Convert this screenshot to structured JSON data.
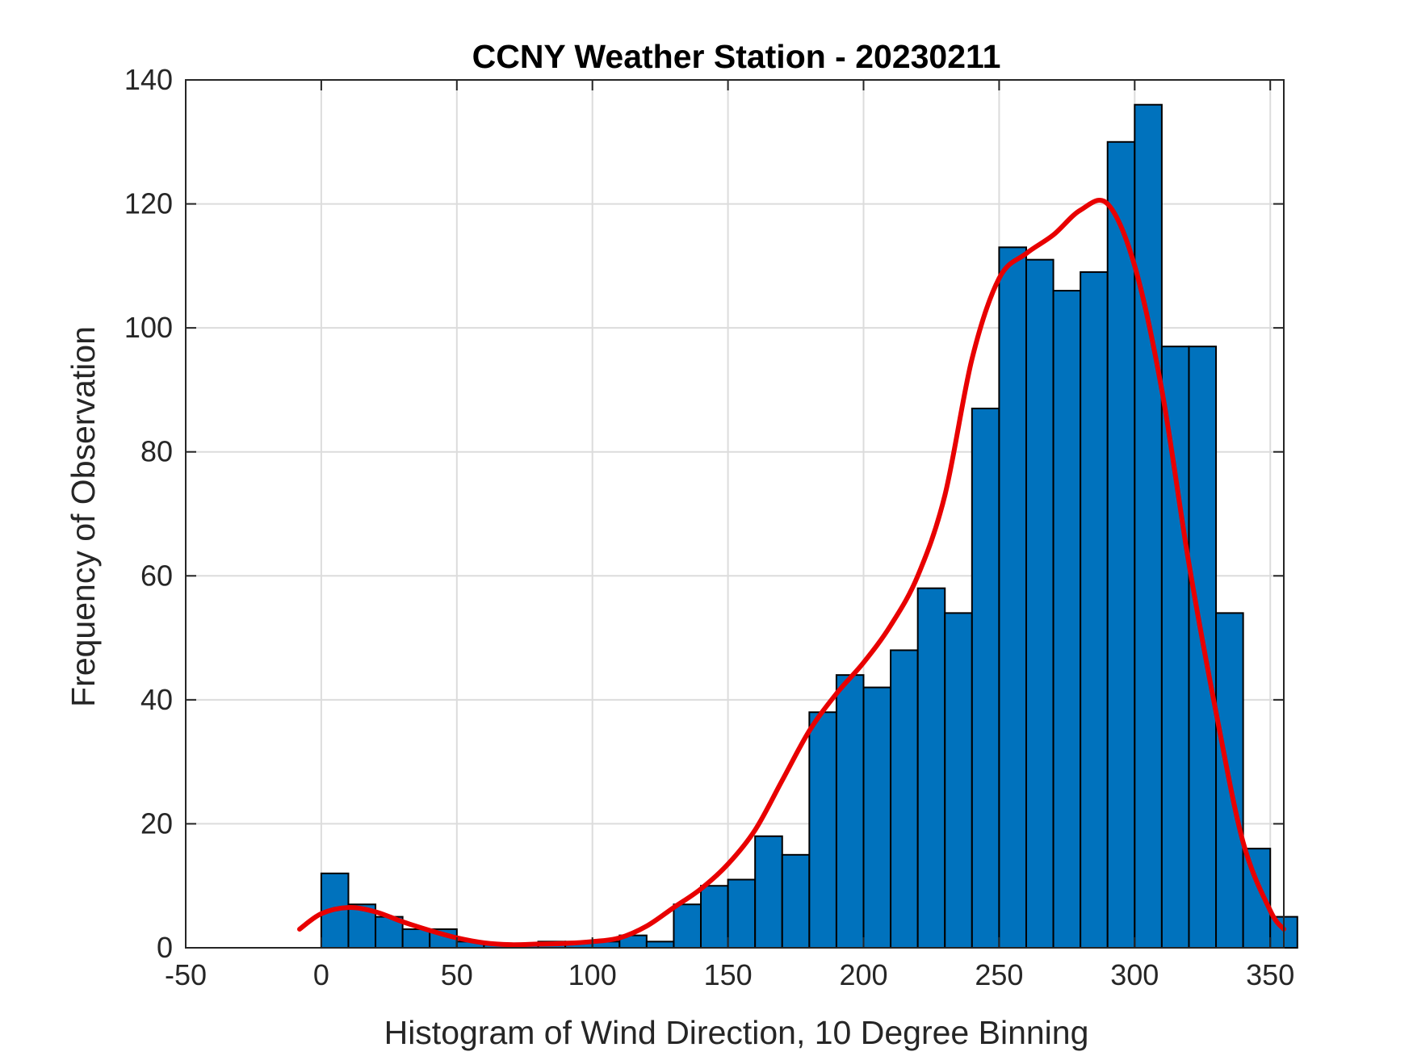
{
  "chart_data": {
    "type": "bar",
    "title": "CCNY Weather Station - 20230211",
    "xlabel": "Histogram of Wind Direction, 10 Degree Binning",
    "ylabel": "Frequency of Observation",
    "xlim": [
      -50,
      355
    ],
    "ylim": [
      0,
      140
    ],
    "xticks": [
      -50,
      0,
      50,
      100,
      150,
      200,
      250,
      300,
      350
    ],
    "yticks": [
      0,
      20,
      40,
      60,
      80,
      100,
      120,
      140
    ],
    "grid": true,
    "bin_width": 10,
    "bins": [
      {
        "start": 0,
        "value": 12
      },
      {
        "start": 10,
        "value": 7
      },
      {
        "start": 20,
        "value": 5
      },
      {
        "start": 30,
        "value": 3
      },
      {
        "start": 40,
        "value": 3
      },
      {
        "start": 50,
        "value": 1
      },
      {
        "start": 60,
        "value": 0.5
      },
      {
        "start": 70,
        "value": 0.5
      },
      {
        "start": 80,
        "value": 1
      },
      {
        "start": 90,
        "value": 1
      },
      {
        "start": 100,
        "value": 1
      },
      {
        "start": 110,
        "value": 2
      },
      {
        "start": 120,
        "value": 1
      },
      {
        "start": 130,
        "value": 7
      },
      {
        "start": 140,
        "value": 10
      },
      {
        "start": 150,
        "value": 11
      },
      {
        "start": 160,
        "value": 18
      },
      {
        "start": 170,
        "value": 15
      },
      {
        "start": 180,
        "value": 38
      },
      {
        "start": 190,
        "value": 44
      },
      {
        "start": 200,
        "value": 42
      },
      {
        "start": 210,
        "value": 48
      },
      {
        "start": 220,
        "value": 58
      },
      {
        "start": 230,
        "value": 54
      },
      {
        "start": 240,
        "value": 87
      },
      {
        "start": 250,
        "value": 113
      },
      {
        "start": 260,
        "value": 111
      },
      {
        "start": 270,
        "value": 106
      },
      {
        "start": 280,
        "value": 109
      },
      {
        "start": 290,
        "value": 130
      },
      {
        "start": 300,
        "value": 136
      },
      {
        "start": 310,
        "value": 97
      },
      {
        "start": 320,
        "value": 97
      },
      {
        "start": 330,
        "value": 54
      },
      {
        "start": 340,
        "value": 16
      },
      {
        "start": 350,
        "value": 5
      }
    ],
    "density_curve": {
      "name": "fitted density",
      "x": [
        -8,
        0,
        10,
        20,
        30,
        40,
        50,
        60,
        70,
        80,
        90,
        100,
        110,
        120,
        130,
        140,
        150,
        160,
        170,
        180,
        190,
        200,
        210,
        220,
        230,
        240,
        250,
        260,
        270,
        280,
        290,
        300,
        310,
        320,
        330,
        340,
        350,
        355
      ],
      "y": [
        3,
        5.5,
        6.5,
        5.8,
        4.2,
        2.8,
        1.6,
        0.8,
        0.5,
        0.6,
        0.7,
        1,
        1.6,
        3.5,
        6.5,
        9.5,
        13.5,
        19,
        27,
        35,
        41,
        46,
        52,
        60,
        73,
        95,
        108,
        112,
        115,
        119,
        120,
        110,
        90,
        62,
        38,
        17,
        6,
        3
      ]
    },
    "colors": {
      "bar_fill": "#0072bd",
      "bar_edge": "#000000",
      "curve": "#e80000"
    }
  }
}
